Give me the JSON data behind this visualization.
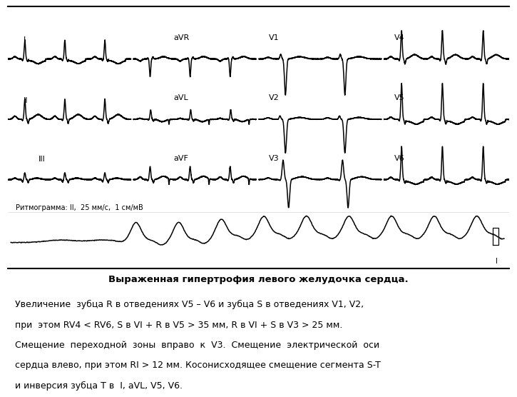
{
  "title_bold": "Выраженная гипертрофия левого желудочка сердца.",
  "description_line1": "Увеличение  зубца R в отведениях V5 – V6 и зубца S в отведениях V1, V2,",
  "description_line2": "при  этом RV4 < RV6, S в VI + R в V5 > 35 мм, R в VI + S в V3 > 25 мм.",
  "description_line3": "Смещение  переходной  зоны  вправо  к  V3.  Смещение  электрической  оси",
  "description_line4": "сердца влево, при этом RI > 12 мм. Косонисходящее смещение сегмента S-T",
  "description_line5": "и инверсия зубца Т в  I, aVL, V5, V6.",
  "rythmogram_label": "Ритмограмма: II,  25 мм/с,  1 см/мВ",
  "background_color": "#ffffff",
  "line_color": "#000000",
  "ecg_lw": 1.1,
  "border_lw": 1.5,
  "fig_width": 7.2,
  "fig_height": 5.4,
  "dpi": 100
}
